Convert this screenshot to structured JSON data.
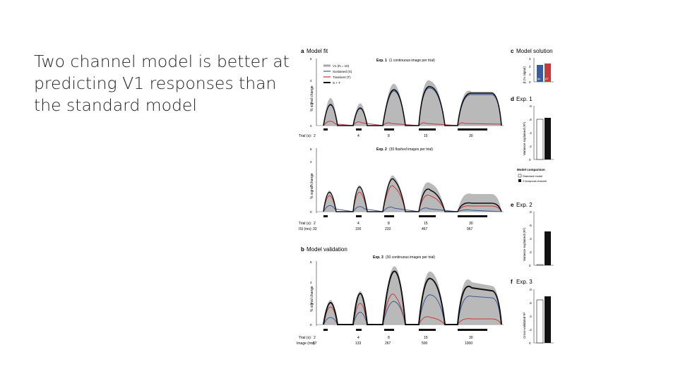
{
  "slide": {
    "title": "Two channel model is better at predicting V1 responses than the standard model"
  },
  "colors": {
    "v1": "#a8a8a8",
    "sustained": "#3b5b9a",
    "transient": "#c8393b",
    "sum": "#111111"
  },
  "figure": {
    "panel_a": {
      "letter": "a",
      "title": "Model fit",
      "exp1_title_bold": "Exp. 1",
      "exp1_title_rest": "(1 continuous image per trial)",
      "exp2_title_bold": "Exp. 2",
      "exp2_title_rest": "(30 flashed images per trial)",
      "legend": [
        "V1 (N = 10)",
        "Sustained (S)",
        "Transient (T)",
        "S + T"
      ],
      "row1_label": "Trial (s):",
      "row1_values": [
        "2",
        "4",
        "8",
        "15",
        "30"
      ],
      "isi_label": "ISI (ms):",
      "isi_values": [
        "33",
        "100",
        "233",
        "467",
        "967"
      ]
    },
    "panel_b": {
      "letter": "b",
      "title": "Model validation",
      "exp3_title_bold": "Exp. 3",
      "exp3_title_rest": "(30 continuous images per trial)",
      "row1_label": "Trial (s):",
      "row1_values": [
        "2",
        "4",
        "8",
        "15",
        "30"
      ],
      "image_label": "Image (ms):",
      "image_values": [
        "67",
        "133",
        "267",
        "500",
        "1000"
      ]
    },
    "yaxis_label": "% signal change",
    "y_ticks": [
      "0",
      "1",
      "2",
      "3",
      "4",
      "5",
      "6"
    ],
    "panel_c": {
      "letter": "c",
      "title": "Model solution",
      "ylabel": "β (% signal)",
      "ticks": [
        "0",
        "1",
        "2",
        "3"
      ],
      "bar_labels": [
        "βs",
        "βT"
      ],
      "values": [
        2.2,
        2.4
      ]
    },
    "panel_d": {
      "letter": "d",
      "title": "Exp. 1",
      "ylabel": "Variance explained (R²)",
      "ticks": [
        "0",
        ".2",
        ".4",
        ".6",
        ".8"
      ],
      "values": [
        0.6,
        0.62
      ]
    },
    "model_comparison": {
      "title": "Model comparison",
      "items": [
        "Standard model",
        "2 temporal-channel"
      ]
    },
    "panel_e": {
      "letter": "e",
      "title": "Exp. 2",
      "ylabel": "Variance explained (R²)",
      "ticks": [
        "0",
        ".2",
        ".4",
        ".6",
        ".8"
      ],
      "values": [
        0.0,
        0.5
      ]
    },
    "panel_f": {
      "letter": "f",
      "title": "Exp. 3",
      "ylabel": "Cross-validated R²",
      "ticks": [
        "0",
        ".2",
        ".4",
        ".6",
        ".8"
      ],
      "values": [
        0.64,
        0.7
      ]
    }
  }
}
